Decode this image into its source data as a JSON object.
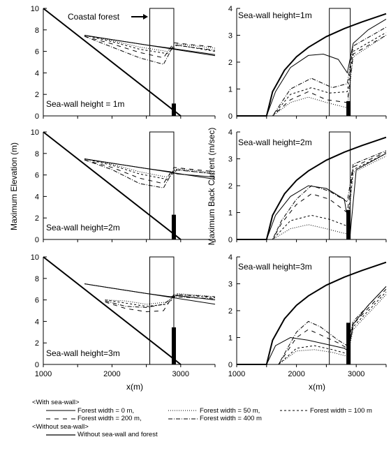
{
  "chart_data": [
    {
      "id": "elev_h1",
      "type": "line",
      "annotations": [
        "Coastal forest",
        "Sea-wall height = 1m"
      ],
      "xlim": [
        1000,
        3500
      ],
      "ylim": [
        0,
        10
      ],
      "xticks": [
        "1000",
        "2000",
        "3000"
      ],
      "yticks": [
        "0",
        "2",
        "4",
        "6",
        "8",
        "10"
      ],
      "seawall_height": 1,
      "forest_box_x": [
        2550,
        2900
      ],
      "series": [
        {
          "name": "Without sea-wall and forest",
          "style": "solid",
          "x": [
            1600,
            2000,
            2500,
            3000,
            3500
          ],
          "y": [
            7.5,
            7.1,
            6.6,
            6.1,
            5.6
          ]
        },
        {
          "name": "Forest width = 0 m",
          "style": "solid",
          "x": [
            1600,
            2000,
            2500,
            2850,
            2950,
            3500
          ],
          "y": [
            7.5,
            7.1,
            6.6,
            6.3,
            6.2,
            5.7
          ]
        },
        {
          "name": "Forest width = 50 m",
          "style": "dotted",
          "x": [
            1600,
            2000,
            2400,
            2800,
            2950,
            3500
          ],
          "y": [
            7.5,
            7.0,
            6.4,
            6.0,
            6.7,
            6.3
          ]
        },
        {
          "name": "Forest width = 100 m",
          "style": "dash",
          "x": [
            1600,
            2000,
            2400,
            2800,
            2950,
            3500
          ],
          "y": [
            7.5,
            6.9,
            6.2,
            5.8,
            6.6,
            6.0
          ]
        },
        {
          "name": "Forest width = 200 m",
          "style": "longdash",
          "x": [
            1600,
            2000,
            2400,
            2750,
            2900,
            3500
          ],
          "y": [
            7.4,
            6.7,
            5.9,
            5.4,
            6.8,
            6.4
          ]
        },
        {
          "name": "Forest width = 400 m",
          "style": "dashdot",
          "x": [
            1600,
            2000,
            2400,
            2750,
            2900,
            3500
          ],
          "y": [
            7.4,
            6.4,
            5.4,
            4.8,
            6.6,
            6.1
          ]
        }
      ]
    },
    {
      "id": "elev_h2",
      "type": "line",
      "annotations": [
        "Sea-wall height=2m"
      ],
      "xlim": [
        1000,
        3500
      ],
      "ylim": [
        0,
        10
      ],
      "xticks": [
        "1000",
        "2000",
        "3000"
      ],
      "yticks": [
        "0",
        "2",
        "4",
        "6",
        "8",
        "10"
      ],
      "seawall_height": 2,
      "forest_box_x": [
        2550,
        2900
      ],
      "series": [
        {
          "name": "Without sea-wall and forest",
          "style": "solid",
          "x": [
            1600,
            2000,
            2500,
            3000,
            3500
          ],
          "y": [
            7.5,
            7.1,
            6.6,
            6.1,
            5.6
          ]
        },
        {
          "name": "Forest width = 0 m",
          "style": "solid",
          "x": [
            1600,
            2000,
            2500,
            2850,
            2950,
            3500
          ],
          "y": [
            7.5,
            7.1,
            6.6,
            6.3,
            6.1,
            5.8
          ]
        },
        {
          "name": "Forest width = 50 m",
          "style": "dotted",
          "x": [
            1600,
            2000,
            2400,
            2800,
            2950,
            3500
          ],
          "y": [
            7.5,
            7.0,
            6.3,
            5.8,
            6.6,
            6.2
          ]
        },
        {
          "name": "Forest width = 100 m",
          "style": "dash",
          "x": [
            1600,
            2000,
            2400,
            2800,
            2950,
            3500
          ],
          "y": [
            7.5,
            6.9,
            6.1,
            5.6,
            6.5,
            6.1
          ]
        },
        {
          "name": "Forest width = 200 m",
          "style": "longdash",
          "x": [
            1600,
            2000,
            2400,
            2750,
            2900,
            3500
          ],
          "y": [
            7.4,
            6.7,
            5.7,
            5.2,
            6.7,
            6.3
          ]
        },
        {
          "name": "Forest width = 400 m",
          "style": "dashdot",
          "x": [
            1600,
            2000,
            2400,
            2750,
            2900,
            3500
          ],
          "y": [
            7.4,
            6.5,
            5.2,
            4.8,
            6.5,
            6.1
          ]
        }
      ]
    },
    {
      "id": "elev_h3",
      "type": "line",
      "annotations": [
        "Sea-wall height=3m"
      ],
      "xlim": [
        1000,
        3500
      ],
      "ylim": [
        0,
        10
      ],
      "xticks": [
        "1000",
        "2000",
        "3000"
      ],
      "yticks": [
        "0",
        "2",
        "4",
        "6",
        "8",
        "10"
      ],
      "xlabel": "x(m)",
      "seawall_height": 3,
      "forest_box_x": [
        2550,
        2900
      ],
      "series": [
        {
          "name": "Without sea-wall and forest",
          "style": "solid",
          "x": [
            1600,
            2000,
            2500,
            3000,
            3500
          ],
          "y": [
            7.5,
            7.1,
            6.6,
            6.1,
            5.6
          ]
        },
        {
          "name": "Forest width = 0 m",
          "style": "solid",
          "x": [
            1600,
            2000,
            2500,
            2850,
            2950,
            3500
          ],
          "y": [
            7.5,
            7.1,
            6.6,
            6.3,
            6.4,
            6.0
          ]
        },
        {
          "name": "Forest width = 50 m",
          "style": "dotted",
          "x": [
            1900,
            2200,
            2500,
            2800,
            2950,
            3500
          ],
          "y": [
            6.0,
            5.9,
            5.6,
            5.8,
            6.6,
            6.3
          ]
        },
        {
          "name": "Forest width = 100 m",
          "style": "dash",
          "x": [
            1900,
            2200,
            2500,
            2800,
            2950,
            3500
          ],
          "y": [
            6.0,
            5.7,
            5.4,
            5.6,
            6.5,
            6.2
          ]
        },
        {
          "name": "Forest width = 200 m",
          "style": "longdash",
          "x": [
            1900,
            2200,
            2500,
            2750,
            2900,
            3500
          ],
          "y": [
            5.8,
            5.2,
            4.9,
            5.0,
            6.5,
            6.3
          ]
        },
        {
          "name": "Forest width = 400 m",
          "style": "dashdot",
          "x": [
            1900,
            2200,
            2500,
            2750,
            2900,
            3500
          ],
          "y": [
            5.9,
            5.4,
            5.3,
            5.6,
            6.3,
            6.1
          ]
        }
      ]
    },
    {
      "id": "curr_h1",
      "type": "line",
      "annotations": [
        "Sea-wall height=1m"
      ],
      "xlim": [
        1000,
        3500
      ],
      "ylim": [
        0,
        4
      ],
      "xticks": [
        "1000",
        "2000",
        "3000"
      ],
      "yticks": [
        "0",
        "1",
        "2",
        "3",
        "4"
      ],
      "seawall_height": 1,
      "forest_box_x": [
        2550,
        2900
      ],
      "series": [
        {
          "name": "Without sea-wall and forest",
          "style": "solid_thick",
          "x": [
            1000,
            1500,
            1600,
            1800,
            2000,
            2200,
            2500,
            2800,
            3100,
            3500
          ],
          "y": [
            0,
            0,
            0.9,
            1.7,
            2.2,
            2.55,
            2.95,
            3.25,
            3.5,
            3.8
          ]
        },
        {
          "name": "Forest width = 0 m",
          "style": "solid",
          "x": [
            1000,
            1500,
            1650,
            1900,
            2200,
            2450,
            2700,
            2850,
            2950,
            3200,
            3500
          ],
          "y": [
            0,
            0,
            0.9,
            1.8,
            2.25,
            2.3,
            2.1,
            1.6,
            2.7,
            3.2,
            3.6
          ]
        },
        {
          "name": "Forest width = 50 m",
          "style": "dotted",
          "x": [
            1000,
            1600,
            1900,
            2200,
            2500,
            2850,
            2950,
            3500
          ],
          "y": [
            0,
            0,
            0.5,
            0.7,
            0.5,
            0.3,
            2.2,
            3.0
          ]
        },
        {
          "name": "Forest width = 100 m",
          "style": "dash",
          "x": [
            1000,
            1600,
            1900,
            2250,
            2550,
            2850,
            2950,
            3500
          ],
          "y": [
            0,
            0,
            0.8,
            1.05,
            0.85,
            0.9,
            2.4,
            3.1
          ]
        },
        {
          "name": "Forest width = 200 m",
          "style": "longdash",
          "x": [
            1000,
            1600,
            1900,
            2200,
            2500,
            2850,
            2950,
            3500
          ],
          "y": [
            0,
            0,
            0.6,
            0.9,
            0.6,
            0.5,
            2.3,
            3.0
          ]
        },
        {
          "name": "Forest width = 400 m",
          "style": "dashdot",
          "x": [
            1000,
            1600,
            1900,
            2250,
            2600,
            2850,
            2950,
            3500
          ],
          "y": [
            0,
            0,
            1.0,
            1.4,
            1.05,
            1.2,
            2.6,
            3.3
          ]
        }
      ]
    },
    {
      "id": "curr_h2",
      "type": "line",
      "annotations": [
        "Sea-wall height=2m"
      ],
      "xlim": [
        1000,
        3500
      ],
      "ylim": [
        0,
        4
      ],
      "xticks": [
        "1000",
        "2000",
        "3000"
      ],
      "yticks": [
        "0",
        "1",
        "2",
        "3",
        "4"
      ],
      "seawall_height": 2,
      "forest_box_x": [
        2550,
        2900
      ],
      "series": [
        {
          "name": "Without sea-wall and forest",
          "style": "solid_thick",
          "x": [
            1000,
            1500,
            1600,
            1800,
            2000,
            2200,
            2500,
            2800,
            3100,
            3500
          ],
          "y": [
            0,
            0,
            0.9,
            1.7,
            2.2,
            2.55,
            2.95,
            3.25,
            3.5,
            3.8
          ]
        },
        {
          "name": "Forest width = 0 m",
          "style": "solid",
          "x": [
            1000,
            1500,
            1650,
            1900,
            2200,
            2500,
            2800,
            2900,
            3000,
            3250,
            3500
          ],
          "y": [
            0,
            0,
            0.9,
            1.6,
            2.0,
            1.9,
            1.5,
            0.2,
            2.6,
            2.9,
            3.2
          ]
        },
        {
          "name": "Forest width = 50 m",
          "style": "dotted",
          "x": [
            1000,
            1600,
            1900,
            2200,
            2500,
            2850,
            2950,
            3500
          ],
          "y": [
            0,
            0,
            0.4,
            0.55,
            0.4,
            0.2,
            2.5,
            3.1
          ]
        },
        {
          "name": "Forest width = 100 m",
          "style": "dash",
          "x": [
            1000,
            1600,
            1900,
            2250,
            2550,
            2850,
            2950,
            3500
          ],
          "y": [
            0,
            0,
            0.7,
            0.9,
            0.75,
            0.5,
            2.6,
            3.2
          ]
        },
        {
          "name": "Forest width = 200 m",
          "style": "longdash",
          "x": [
            1000,
            1600,
            1750,
            2000,
            2250,
            2550,
            2850,
            2950,
            3500
          ],
          "y": [
            0,
            0,
            0.6,
            1.3,
            1.7,
            1.5,
            1.0,
            2.7,
            3.25
          ]
        },
        {
          "name": "Forest width = 400 m",
          "style": "dashdot",
          "x": [
            1000,
            1600,
            1750,
            2000,
            2250,
            2550,
            2850,
            2950,
            3500
          ],
          "y": [
            0,
            0,
            0.7,
            1.5,
            2.0,
            1.8,
            1.4,
            2.8,
            3.3
          ]
        }
      ]
    },
    {
      "id": "curr_h3",
      "type": "line",
      "annotations": [
        "Sea-wall height=3m"
      ],
      "xlim": [
        1000,
        3500
      ],
      "ylim": [
        0,
        4
      ],
      "xticks": [
        "1000",
        "2000",
        "3000"
      ],
      "yticks": [
        "0",
        "1",
        "2",
        "3",
        "4"
      ],
      "xlabel": "x(m)",
      "seawall_height": 3,
      "forest_box_x": [
        2550,
        2900
      ],
      "series": [
        {
          "name": "Without sea-wall and forest",
          "style": "solid_thick",
          "x": [
            1000,
            1500,
            1600,
            1800,
            2000,
            2200,
            2500,
            2800,
            3100,
            3500
          ],
          "y": [
            0,
            0,
            0.9,
            1.7,
            2.2,
            2.55,
            2.95,
            3.25,
            3.5,
            3.8
          ]
        },
        {
          "name": "Forest width = 0 m",
          "style": "solid",
          "x": [
            1000,
            1500,
            1650,
            1900,
            2200,
            2500,
            2800,
            2870,
            2950,
            3200,
            3500
          ],
          "y": [
            0,
            0,
            0.7,
            1.0,
            0.9,
            0.75,
            0.6,
            0.5,
            1.5,
            2.2,
            2.9
          ]
        },
        {
          "name": "Forest width = 50 m",
          "style": "dotted",
          "x": [
            1000,
            1700,
            2000,
            2300,
            2600,
            2850,
            2950,
            3500
          ],
          "y": [
            0,
            0,
            0.5,
            0.55,
            0.45,
            0.3,
            1.3,
            2.6
          ]
        },
        {
          "name": "Forest width = 100 m",
          "style": "dash",
          "x": [
            1000,
            1700,
            2000,
            2300,
            2600,
            2850,
            2950,
            3500
          ],
          "y": [
            0,
            0,
            0.6,
            0.7,
            0.55,
            0.4,
            1.4,
            2.7
          ]
        },
        {
          "name": "Forest width = 200 m",
          "style": "longdash",
          "x": [
            1000,
            1700,
            2000,
            2200,
            2400,
            2700,
            2850,
            2950,
            3500
          ],
          "y": [
            0,
            0,
            1.0,
            1.3,
            1.1,
            0.8,
            0.6,
            1.5,
            2.8
          ]
        },
        {
          "name": "Forest width = 400 m",
          "style": "dashdot",
          "x": [
            1000,
            1700,
            2000,
            2200,
            2400,
            2700,
            2850,
            2950,
            3500
          ],
          "y": [
            0,
            0,
            1.2,
            1.6,
            1.4,
            0.9,
            0.7,
            1.6,
            2.9
          ]
        }
      ]
    }
  ],
  "axis_labels": {
    "left_y": "Maximum Elevation (m)",
    "right_y": "Maximum Back Current (m/sec)"
  },
  "legend": {
    "with_header": "<With sea-wall>",
    "without_header": "<Without sea-wall>",
    "entries": [
      {
        "label": "Forest width =    0 m,",
        "style": "solid"
      },
      {
        "label": "Forest width =  50 m,",
        "style": "dotted"
      },
      {
        "label": "Forest width = 100 m",
        "style": "dash"
      },
      {
        "label": "Forest width = 200 m,",
        "style": "longdash"
      },
      {
        "label": "Forest width = 400 m",
        "style": "dashdot"
      }
    ],
    "without_entry": {
      "label": "Without sea-wall and forest",
      "style": "solid"
    }
  }
}
